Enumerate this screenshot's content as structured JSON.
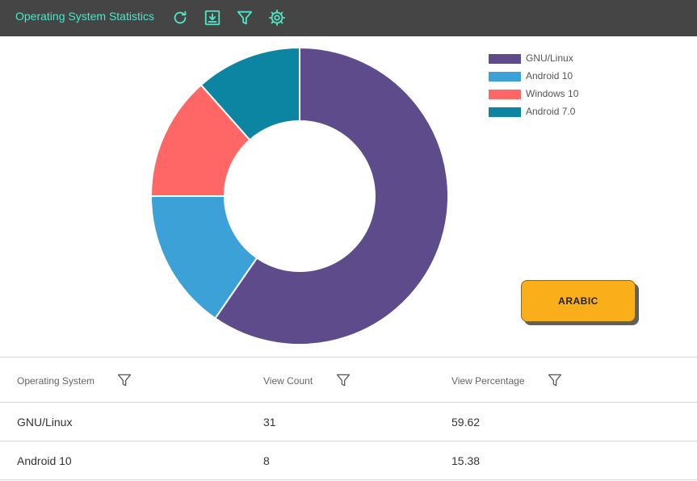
{
  "toolbar": {
    "title": "Operating System Statistics",
    "icons": [
      "refresh-icon",
      "download-icon",
      "filter-icon",
      "settings-icon"
    ],
    "icon_color": "#4ee6c8",
    "background": "#454545"
  },
  "chart_data": {
    "type": "pie",
    "subtype": "donut",
    "categories": [
      "GNU/Linux",
      "Android 10",
      "Windows 10",
      "Android 7.0"
    ],
    "values": [
      59.62,
      15.38,
      13.46,
      11.54
    ],
    "colors": [
      "#5e4b8b",
      "#3ba1d6",
      "#ff6666",
      "#0c85a3"
    ],
    "legend_position": "top-right"
  },
  "legend": {
    "items": [
      {
        "label": "GNU/Linux",
        "color": "#5e4b8b"
      },
      {
        "label": "Android 10",
        "color": "#3ba1d6"
      },
      {
        "label": "Windows 10",
        "color": "#ff6666"
      },
      {
        "label": "Android 7.0",
        "color": "#0c85a3"
      }
    ]
  },
  "language_button": {
    "label": "ARABIC",
    "color": "#f9ae1a"
  },
  "table": {
    "columns": [
      "Operating System",
      "View Count",
      "View Percentage"
    ],
    "rows": [
      [
        "GNU/Linux",
        "31",
        "59.62"
      ],
      [
        "Android 10",
        "8",
        "15.38"
      ]
    ]
  }
}
